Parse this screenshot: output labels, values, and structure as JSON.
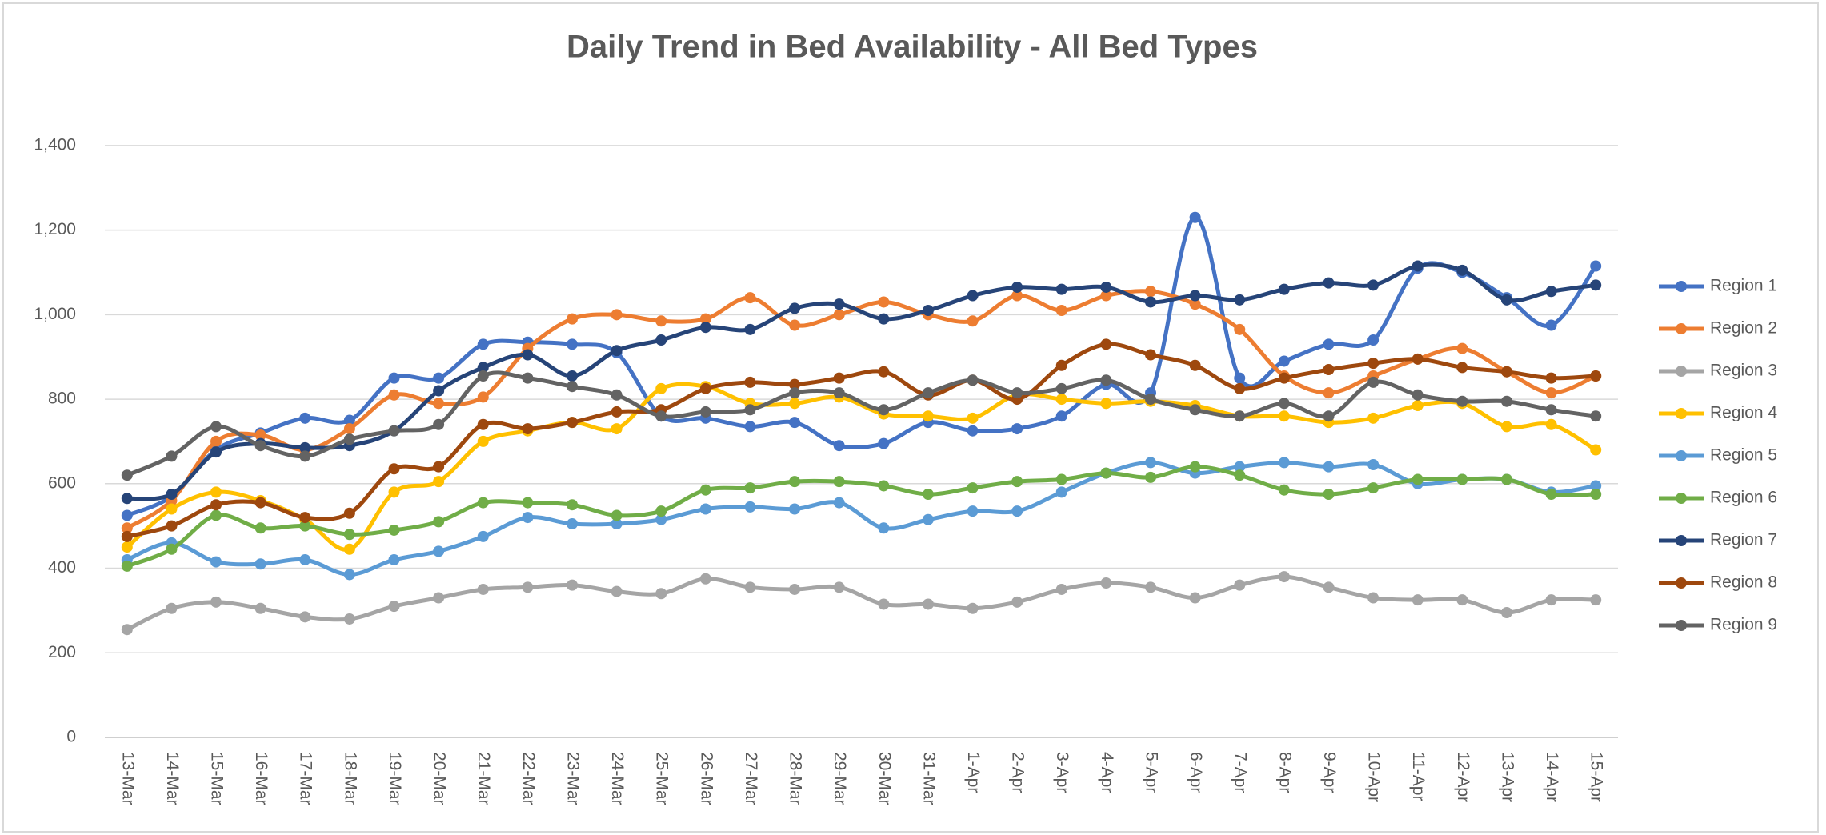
{
  "chart_data": {
    "type": "line",
    "title": "Daily Trend in Bed Availability - All Bed Types",
    "categories": [
      "13-Mar",
      "14-Mar",
      "15-Mar",
      "16-Mar",
      "17-Mar",
      "18-Mar",
      "19-Mar",
      "20-Mar",
      "21-Mar",
      "22-Mar",
      "23-Mar",
      "24-Mar",
      "25-Mar",
      "26-Mar",
      "27-Mar",
      "28-Mar",
      "29-Mar",
      "30-Mar",
      "31-Mar",
      "1-Apr",
      "2-Apr",
      "3-Apr",
      "4-Apr",
      "5-Apr",
      "6-Apr",
      "7-Apr",
      "8-Apr",
      "9-Apr",
      "10-Apr",
      "11-Apr",
      "12-Apr",
      "13-Apr",
      "14-Apr",
      "15-Apr"
    ],
    "series": [
      {
        "name": "Region 1",
        "color": "#4472c4",
        "values": [
          525,
          570,
          680,
          720,
          755,
          750,
          850,
          850,
          930,
          935,
          930,
          910,
          760,
          755,
          735,
          745,
          690,
          695,
          745,
          725,
          730,
          760,
          835,
          815,
          1230,
          850,
          890,
          930,
          940,
          1110,
          1100,
          1040,
          975,
          1115
        ]
      },
      {
        "name": "Region 2",
        "color": "#ed7d31",
        "values": [
          495,
          560,
          700,
          715,
          680,
          730,
          810,
          790,
          805,
          920,
          990,
          1000,
          985,
          990,
          1040,
          975,
          1000,
          1030,
          1000,
          985,
          1045,
          1010,
          1045,
          1055,
          1025,
          965,
          855,
          815,
          855,
          895,
          920,
          865,
          815,
          855
        ]
      },
      {
        "name": "Region 3",
        "color": "#a5a5a5",
        "values": [
          255,
          305,
          320,
          305,
          285,
          280,
          310,
          330,
          350,
          355,
          360,
          345,
          340,
          375,
          355,
          350,
          355,
          315,
          315,
          305,
          320,
          350,
          365,
          355,
          330,
          360,
          380,
          355,
          330,
          325,
          325,
          295,
          325,
          325
        ]
      },
      {
        "name": "Region 4",
        "color": "#ffc000",
        "values": [
          450,
          540,
          580,
          560,
          515,
          445,
          580,
          605,
          700,
          725,
          745,
          730,
          825,
          830,
          790,
          790,
          805,
          765,
          760,
          755,
          810,
          800,
          790,
          795,
          785,
          760,
          760,
          745,
          755,
          785,
          790,
          735,
          740,
          680
        ]
      },
      {
        "name": "Region 5",
        "color": "#5b9bd5",
        "values": [
          420,
          460,
          415,
          410,
          420,
          385,
          420,
          440,
          475,
          520,
          505,
          505,
          515,
          540,
          545,
          540,
          555,
          495,
          515,
          535,
          535,
          580,
          625,
          650,
          625,
          640,
          650,
          640,
          645,
          600,
          610,
          610,
          580,
          595
        ]
      },
      {
        "name": "Region 6",
        "color": "#70ad47",
        "values": [
          405,
          445,
          525,
          495,
          500,
          480,
          490,
          510,
          555,
          555,
          550,
          525,
          535,
          585,
          590,
          605,
          605,
          595,
          575,
          590,
          605,
          610,
          625,
          615,
          640,
          620,
          585,
          575,
          590,
          610,
          610,
          610,
          575,
          575
        ]
      },
      {
        "name": "Region 7",
        "color": "#264478",
        "values": [
          565,
          575,
          675,
          695,
          685,
          690,
          725,
          820,
          875,
          905,
          855,
          915,
          940,
          970,
          965,
          1015,
          1025,
          990,
          1010,
          1045,
          1065,
          1060,
          1065,
          1030,
          1045,
          1035,
          1060,
          1075,
          1070,
          1115,
          1105,
          1035,
          1055,
          1070
        ]
      },
      {
        "name": "Region 8",
        "color": "#9e480e",
        "values": [
          475,
          500,
          550,
          555,
          520,
          530,
          635,
          640,
          740,
          730,
          745,
          770,
          775,
          825,
          840,
          835,
          850,
          865,
          810,
          845,
          800,
          880,
          930,
          905,
          880,
          825,
          850,
          870,
          885,
          895,
          875,
          865,
          850,
          855
        ]
      },
      {
        "name": "Region 9",
        "color": "#636363",
        "values": [
          620,
          665,
          735,
          690,
          665,
          705,
          725,
          740,
          855,
          850,
          830,
          810,
          760,
          770,
          775,
          815,
          815,
          775,
          815,
          845,
          815,
          825,
          845,
          800,
          775,
          760,
          790,
          760,
          840,
          810,
          795,
          795,
          775,
          760
        ]
      }
    ],
    "ylim": [
      0,
      1500
    ],
    "yticks": [
      0,
      200,
      400,
      600,
      800,
      {
        "value": 1000,
        "label": "1,000"
      },
      {
        "value": 1200,
        "label": "1,200"
      },
      {
        "value": 1400,
        "label": "1,400"
      }
    ],
    "grid": true,
    "legend": "right",
    "smooth": true
  }
}
